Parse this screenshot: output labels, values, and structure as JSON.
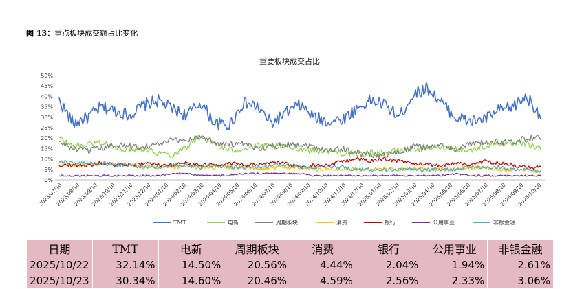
{
  "figure": {
    "label": "图 13：",
    "caption": "重点板块成交额占比变化"
  },
  "chart_data": {
    "type": "line",
    "title": "重要板块成交占比",
    "xlabel": "",
    "ylabel": "",
    "ylim": [
      0,
      50
    ],
    "yticks": [
      "0%",
      "5%",
      "10%",
      "15%",
      "20%",
      "25%",
      "30%",
      "35%",
      "40%",
      "45%",
      "50%"
    ],
    "x_ticks": [
      "2023/07/10",
      "2023/08/10",
      "2023/09/10",
      "2023/10/10",
      "2023/11/10",
      "2023/12/10",
      "2024/01/10",
      "2024/02/10",
      "2024/03/10",
      "2024/04/10",
      "2024/05/10",
      "2024/06/10",
      "2024/07/10",
      "2024/08/10",
      "2024/09/10",
      "2024/10/10",
      "2024/11/10",
      "2024/12/10",
      "2025/01/10",
      "2025/02/10",
      "2025/03/10",
      "2025/04/10",
      "2025/05/10",
      "2025/06/10",
      "2025/07/10",
      "2025/08/10",
      "2025/09/10",
      "2025/10/10"
    ],
    "grid": false,
    "legend_position": "bottom",
    "series": [
      {
        "name": "TMT",
        "color": "#4472c4",
        "values": [
          38,
          27,
          30,
          35,
          33,
          31,
          36,
          38,
          34,
          31,
          37,
          27,
          26,
          37,
          35,
          27,
          32,
          36,
          30,
          28,
          29,
          34,
          38,
          36,
          30,
          41,
          44,
          37,
          30,
          28,
          29,
          33,
          35,
          40,
          31
        ]
      },
      {
        "name": "电新",
        "color": "#8fd14f",
        "values": [
          20,
          16,
          17,
          18,
          15,
          15,
          15,
          13,
          12,
          16,
          21,
          17,
          14,
          15,
          16,
          16,
          16,
          15,
          14,
          14,
          13,
          12,
          13,
          13,
          14,
          15,
          15,
          16,
          15,
          14,
          16,
          18,
          17,
          17,
          15
        ]
      },
      {
        "name": "周期板块",
        "color": "#808080",
        "values": [
          18,
          15,
          14,
          15,
          17,
          16,
          16,
          17,
          19,
          19,
          21,
          18,
          17,
          17,
          15,
          16,
          17,
          17,
          16,
          14,
          15,
          13,
          12,
          12,
          13,
          16,
          16,
          16,
          15,
          17,
          18,
          18,
          18,
          20,
          20
        ]
      },
      {
        "name": "消费",
        "color": "#ffc000",
        "values": [
          8,
          7,
          7,
          8,
          7,
          7,
          6,
          6,
          6,
          6,
          6,
          6,
          6,
          6,
          5,
          6,
          6,
          6,
          5,
          5,
          5,
          5,
          5,
          5,
          5,
          5,
          5,
          5,
          5,
          6,
          6,
          5,
          5,
          5,
          4
        ]
      },
      {
        "name": "银行",
        "color": "#c00000",
        "values": [
          7,
          7,
          7,
          8,
          7,
          7,
          8,
          7,
          7,
          8,
          7,
          7,
          8,
          7,
          7,
          8,
          8,
          6,
          7,
          7,
          9,
          10,
          9,
          10,
          9,
          8,
          7,
          7,
          8,
          7,
          9,
          8,
          7,
          6,
          6
        ]
      },
      {
        "name": "公用事业",
        "color": "#7030a0",
        "values": [
          2,
          2,
          2,
          2,
          2,
          2,
          2,
          2,
          3,
          3,
          2,
          2,
          2,
          3,
          3,
          3,
          3,
          3,
          2,
          2,
          2,
          2,
          2,
          2,
          2,
          2,
          2,
          2,
          3,
          2,
          2,
          2,
          2,
          2,
          2
        ]
      },
      {
        "name": "非银金融",
        "color": "#4bacc6",
        "values": [
          9,
          8,
          8,
          8,
          7,
          7,
          6,
          6,
          7,
          7,
          6,
          7,
          6,
          6,
          6,
          7,
          7,
          6,
          6,
          6,
          6,
          5,
          5,
          5,
          5,
          5,
          5,
          5,
          5,
          6,
          6,
          6,
          5,
          5,
          4
        ]
      }
    ]
  },
  "table": {
    "headers": [
      "日期",
      "TMT",
      "电新",
      "周期板块",
      "消费",
      "银行",
      "公用事业",
      "非银金融"
    ],
    "rows": [
      [
        "2025/10/22",
        "32.14%",
        "14.50%",
        "20.56%",
        "4.44%",
        "2.04%",
        "1.94%",
        "2.61%"
      ],
      [
        "2025/10/23",
        "30.34%",
        "14.60%",
        "20.46%",
        "4.59%",
        "2.56%",
        "2.33%",
        "3.06%"
      ]
    ]
  }
}
